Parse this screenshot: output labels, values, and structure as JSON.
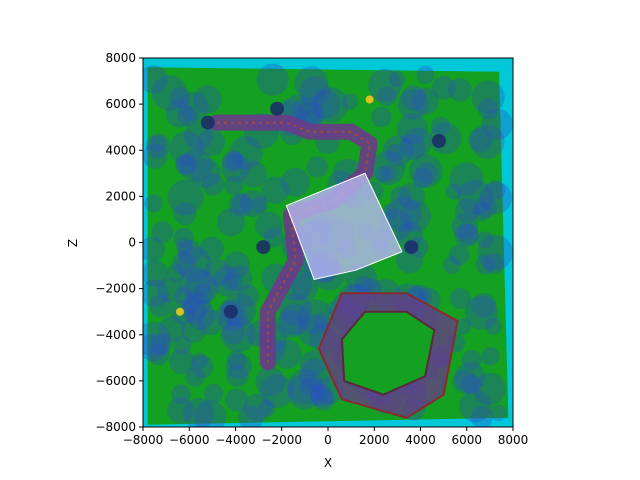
{
  "chart_data": {
    "type": "image",
    "xlabel": "X",
    "ylabel": "Z",
    "xlim": [
      -8000,
      8000
    ],
    "ylim": [
      -8000,
      8000
    ],
    "xticks": [
      -8000,
      -6000,
      -4000,
      -2000,
      0,
      2000,
      4000,
      6000,
      8000
    ],
    "yticks": [
      -8000,
      -6000,
      -4000,
      -2000,
      0,
      2000,
      4000,
      6000,
      8000
    ],
    "xtick_labels": [
      "−8000",
      "−6000",
      "−4000",
      "−2000",
      "0",
      "2000",
      "4000",
      "6000",
      "8000"
    ],
    "ytick_labels": [
      "−8000",
      "−6000",
      "−4000",
      "−2000",
      "0",
      "2000",
      "4000",
      "6000",
      "8000"
    ],
    "grid": false,
    "colors": {
      "water": "#00c8d8",
      "terrain": "#14a020",
      "coverage": "#2a4ec8",
      "path": "#6a3a8a",
      "highlight": "#b8b8f0",
      "marker": "#e0c020"
    },
    "regions": {
      "path_points": [
        [
          -4800,
          5200
        ],
        [
          -1800,
          5200
        ],
        [
          -800,
          4800
        ],
        [
          1000,
          4800
        ],
        [
          1800,
          4300
        ],
        [
          1600,
          3000
        ],
        [
          200,
          1800
        ],
        [
          -1600,
          1200
        ],
        [
          -1400,
          -800
        ],
        [
          -2600,
          -3000
        ],
        [
          -2600,
          -5200
        ]
      ],
      "highlight_points": [
        [
          -1800,
          1600
        ],
        [
          1600,
          3000
        ],
        [
          3200,
          -400
        ],
        [
          1200,
          -1200
        ],
        [
          -600,
          -1600
        ]
      ],
      "enclosure_outer": [
        [
          600,
          -2200
        ],
        [
          3400,
          -2200
        ],
        [
          5600,
          -3400
        ],
        [
          5000,
          -6600
        ],
        [
          3400,
          -7600
        ],
        [
          600,
          -6800
        ],
        [
          -400,
          -4600
        ]
      ],
      "enclosure_inner": [
        [
          1600,
          -3000
        ],
        [
          3400,
          -3000
        ],
        [
          4600,
          -3800
        ],
        [
          4200,
          -5800
        ],
        [
          2400,
          -6600
        ],
        [
          700,
          -6000
        ],
        [
          600,
          -4200
        ]
      ],
      "markers": [
        [
          1800,
          6200
        ],
        [
          -6400,
          -3000
        ]
      ]
    }
  }
}
